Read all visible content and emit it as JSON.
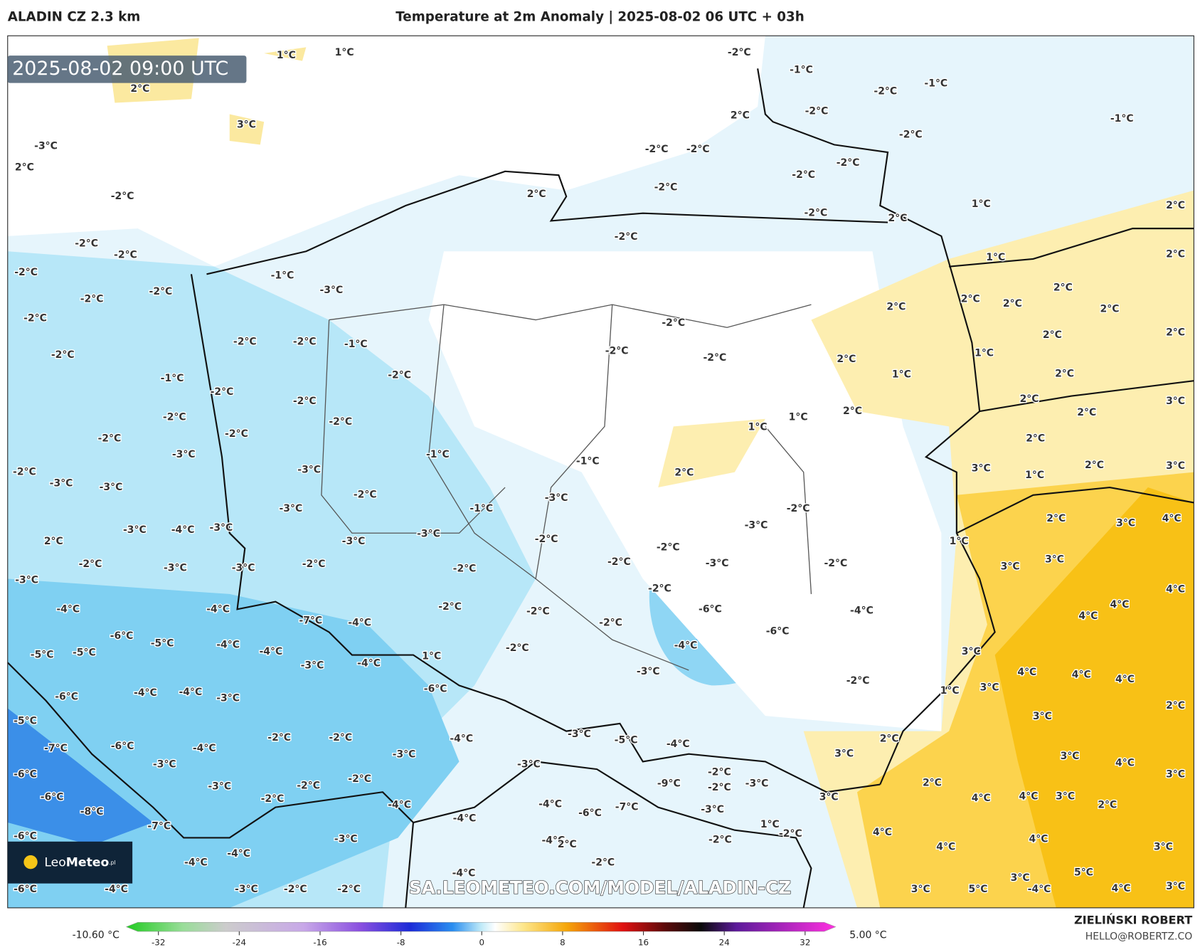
{
  "header": {
    "model": "ALADIN CZ 2.3 km",
    "title": "Temperature at 2m Anomaly | 2025-08-02 06 UTC + 03h"
  },
  "map": {
    "timestamp": "2025-08-02 09:00 UTC",
    "watermark": "SA.LEOMETEO.COM/MODEL/ALADIN-CZ",
    "logo": {
      "brand": "Leo",
      "name": "Meteo",
      "suffix": ".pl"
    },
    "labels": [
      "1°C",
      "1°C",
      "2°C",
      "3°C",
      "-3°C",
      "2°C",
      "-2°C",
      "-2°C",
      "-2°C",
      "-2°C",
      "-1°C",
      "-3°C",
      "-2°C",
      "-2°C",
      "-2°C",
      "-2°C",
      "-2°C",
      "-1°C",
      "-2°C",
      "-1°C",
      "-2°C",
      "-2°C",
      "-2°C",
      "-2°C",
      "-2°C",
      "-2°C",
      "-2°C",
      "-3°C",
      "-1°C",
      "-1°C",
      "-2°C",
      "-3°C",
      "-3°C",
      "-3°C",
      "-2°C",
      "-3°C",
      "-1°C",
      "-3°C",
      "-3°C",
      "-4°C",
      "-3°C",
      "-3°C",
      "-2°C",
      "2°C",
      "-3°C",
      "-2°C",
      "-2°C",
      "-3°C",
      "-2°C",
      "-2°C",
      "-3°C",
      "-2°C",
      "-3°C",
      "-3°C",
      "-2°C",
      "-3°C",
      "-2°C",
      "-2°C",
      "-6°C",
      "-6°C",
      "-4°C",
      "-3°C",
      "-2°C",
      "-4°C",
      "-2°C",
      "-2°C",
      "-2°C",
      "-2°C",
      "1°C",
      "-7°C",
      "-4°C",
      "-4°C",
      "-4°C",
      "-6°C",
      "-5°C",
      "-4°C",
      "-5°C",
      "-5°C",
      "-4°C",
      "-3°C",
      "-4°C",
      "-6°C",
      "-4°C",
      "-4°C",
      "-3°C",
      "-6°C",
      "-5°C",
      "-7°C",
      "-6°C",
      "-4°C",
      "-2°C",
      "-2°C",
      "-3°C",
      "-4°C",
      "-3°C",
      "-5°C",
      "-4°C",
      "-3°C",
      "-3°C",
      "-6°C",
      "-6°C",
      "-8°C",
      "-3°C",
      "-2°C",
      "-2°C",
      "-2°C",
      "-4°C",
      "-9°C",
      "-2°C",
      "-2°C",
      "-3°C",
      "-7°C",
      "-3°C",
      "-6°C",
      "-4°C",
      "-7°C",
      "-4°C",
      "1°C",
      "-2°C",
      "-2°C",
      "-4°C",
      "2°C",
      "-6°C",
      "-3°C",
      "-4°C",
      "-4°C",
      "-2°C",
      "-4°C",
      "-6°C",
      "-4°C",
      "-3°C",
      "-2°C",
      "-2°C",
      "-2°C",
      "-1°C",
      "-1°C",
      "-2°C",
      "-2°C",
      "2°C",
      "-1°C",
      "-2°C",
      "-2°C",
      "-2°C",
      "-2°C",
      "-2°C",
      "-2°C",
      "2°C",
      "-2°C",
      "2°C",
      "1°C",
      "2°C",
      "-2°C",
      "1°C",
      "2°C",
      "2°C",
      "2°C",
      "2°C",
      "2°C",
      "2°C",
      "-2°C",
      "2°C",
      "2°C",
      "-2°C",
      "-2°C",
      "1°C",
      "2°C",
      "1°C",
      "2°C",
      "2°C",
      "3°C",
      "2°C",
      "2°C",
      "1°C",
      "1°C",
      "2°C",
      "3°C",
      "2°C",
      "3°C",
      "2°C",
      "1°C",
      "2°C",
      "3°C",
      "4°C",
      "1°C",
      "3°C",
      "3°C",
      "4°C",
      "4°C",
      "4°C",
      "3°C",
      "4°C",
      "4°C",
      "4°C",
      "1°C",
      "3°C",
      "2°C",
      "3°C",
      "2°C",
      "3°C",
      "3°C",
      "4°C",
      "3°C",
      "2°C",
      "3°C",
      "4°C",
      "4°C",
      "3°C",
      "2°C",
      "4°C",
      "4°C",
      "4°C",
      "3°C",
      "5°C",
      "3°C",
      "4°C",
      "3°C",
      "3°C",
      "5°C",
      "-4°C"
    ]
  },
  "colorbar": {
    "min_label": "-10.60 °C",
    "max_label": "5.00 °C",
    "ticks": [
      -32,
      -24,
      -16,
      -8,
      0,
      8,
      16,
      24,
      32
    ]
  },
  "credits": {
    "author": "ZIELIŃSKI ROBERT",
    "email": "HELLO@ROBERTZ.CO"
  }
}
